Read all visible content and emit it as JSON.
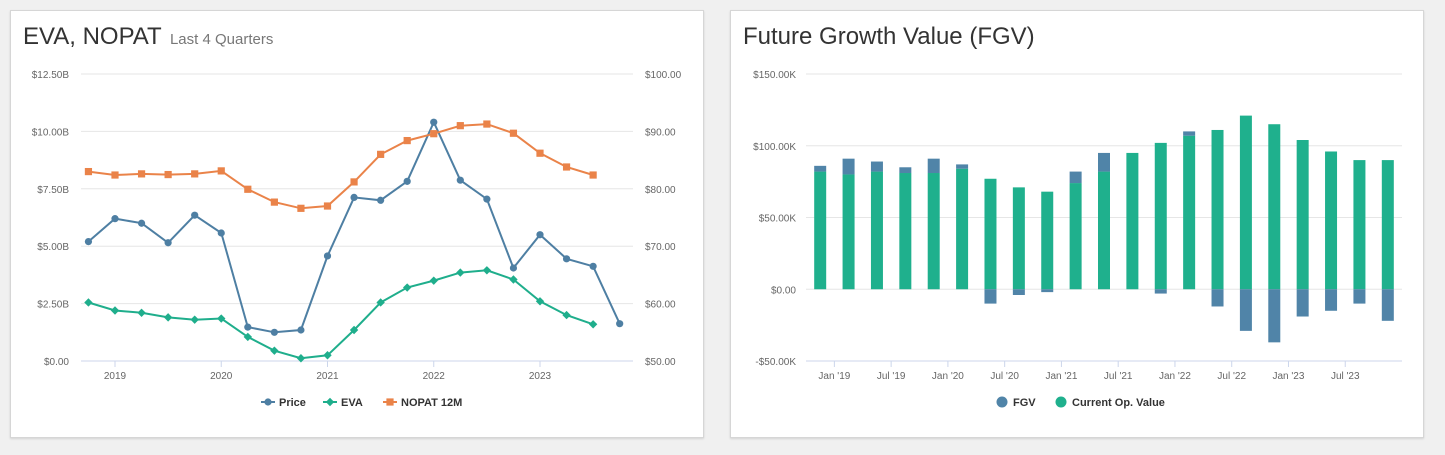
{
  "chart_data": [
    {
      "type": "line",
      "title": "EVA, NOPAT",
      "subtitle": "Last 4 Quarters",
      "x_ticks": [
        "2019",
        "2020",
        "2021",
        "2022",
        "2023"
      ],
      "y_left": {
        "lim": [
          0,
          12.5
        ],
        "ticks": [
          0,
          2.5,
          5,
          7.5,
          10,
          12.5
        ],
        "tick_labels": [
          "$0.00",
          "$2.50B",
          "$5.00B",
          "$7.50B",
          "$10.00B",
          "$12.50B"
        ]
      },
      "y_right": {
        "lim": [
          50,
          100
        ],
        "ticks": [
          50,
          60,
          70,
          80,
          90,
          100
        ],
        "tick_labels": [
          "$50.00",
          "$60.00",
          "$70.00",
          "$80.00",
          "$90.00",
          "$100.00"
        ]
      },
      "series": [
        {
          "name": "Price",
          "axis": "right",
          "color": "#4e7fa3",
          "marker": "circle",
          "x": [
            2018.75,
            2019.0,
            2019.25,
            2019.5,
            2019.75,
            2020.0,
            2020.25,
            2020.5,
            2020.75,
            2021.0,
            2021.25,
            2021.5,
            2021.75,
            2022.0,
            2022.25,
            2022.5,
            2022.75,
            2023.0,
            2023.25,
            2023.5,
            2023.75
          ],
          "y": [
            70.8,
            74.8,
            74.0,
            70.6,
            75.4,
            72.3,
            55.9,
            55.0,
            55.4,
            68.3,
            78.5,
            78.0,
            81.3,
            91.6,
            81.5,
            78.2,
            66.2,
            72.0,
            67.8,
            66.5,
            56.5
          ]
        },
        {
          "name": "EVA",
          "axis": "left",
          "color": "#1fae8c",
          "marker": "diamond",
          "x": [
            2018.75,
            2019.0,
            2019.25,
            2019.5,
            2019.75,
            2020.0,
            2020.25,
            2020.5,
            2020.75,
            2021.0,
            2021.25,
            2021.5,
            2021.75,
            2022.0,
            2022.25,
            2022.5,
            2022.75,
            2023.0,
            2023.25,
            2023.5
          ],
          "y": [
            2.55,
            2.2,
            2.1,
            1.9,
            1.8,
            1.85,
            1.05,
            0.45,
            0.12,
            0.25,
            1.35,
            2.55,
            3.2,
            3.5,
            3.85,
            3.95,
            3.55,
            2.6,
            2.0,
            1.6
          ]
        },
        {
          "name": "NOPAT 12M",
          "axis": "left",
          "color": "#ea8349",
          "marker": "square",
          "x": [
            2018.75,
            2019.0,
            2019.25,
            2019.5,
            2019.75,
            2020.0,
            2020.25,
            2020.5,
            2020.75,
            2021.0,
            2021.25,
            2021.5,
            2021.75,
            2022.0,
            2022.25,
            2022.5,
            2022.75,
            2023.0,
            2023.25,
            2023.5
          ],
          "y": [
            8.25,
            8.1,
            8.15,
            8.12,
            8.15,
            8.28,
            7.48,
            6.92,
            6.65,
            6.75,
            7.8,
            9.0,
            9.6,
            9.9,
            10.25,
            10.32,
            9.92,
            9.05,
            8.45,
            8.1
          ]
        }
      ],
      "legend": "bottom",
      "grid": true
    },
    {
      "type": "bar",
      "stacked": true,
      "title": "Future Growth Value (FGV)",
      "x_tick_labels": [
        "Jan '19",
        "Jul '19",
        "Jan '20",
        "Jul '20",
        "Jan '21",
        "Jul '21",
        "Jan '22",
        "Jul '22",
        "Jan '23",
        "Jul '23"
      ],
      "ylim": [
        -50,
        150
      ],
      "y_ticks": [
        -50,
        0,
        50,
        100,
        150
      ],
      "y_tick_labels": [
        "-$50.00K",
        "$0.00",
        "$50.00K",
        "$100.00K",
        "$150.00K"
      ],
      "series": [
        {
          "name": "FGV",
          "color": "#5084a8",
          "values": [
            4,
            11,
            7,
            4,
            10,
            3,
            -10,
            -4,
            -2,
            8,
            13,
            0,
            -3,
            3,
            -12,
            -29,
            -37,
            -19,
            -15,
            -10,
            -22
          ]
        },
        {
          "name": "Current Op. Value",
          "color": "#1fb08d",
          "values": [
            82,
            80,
            82,
            81,
            81,
            84,
            77,
            71,
            68,
            74,
            82,
            95,
            102,
            107,
            111,
            121,
            115,
            104,
            96,
            90,
            90
          ]
        }
      ],
      "legend": "bottom",
      "grid": true
    }
  ]
}
